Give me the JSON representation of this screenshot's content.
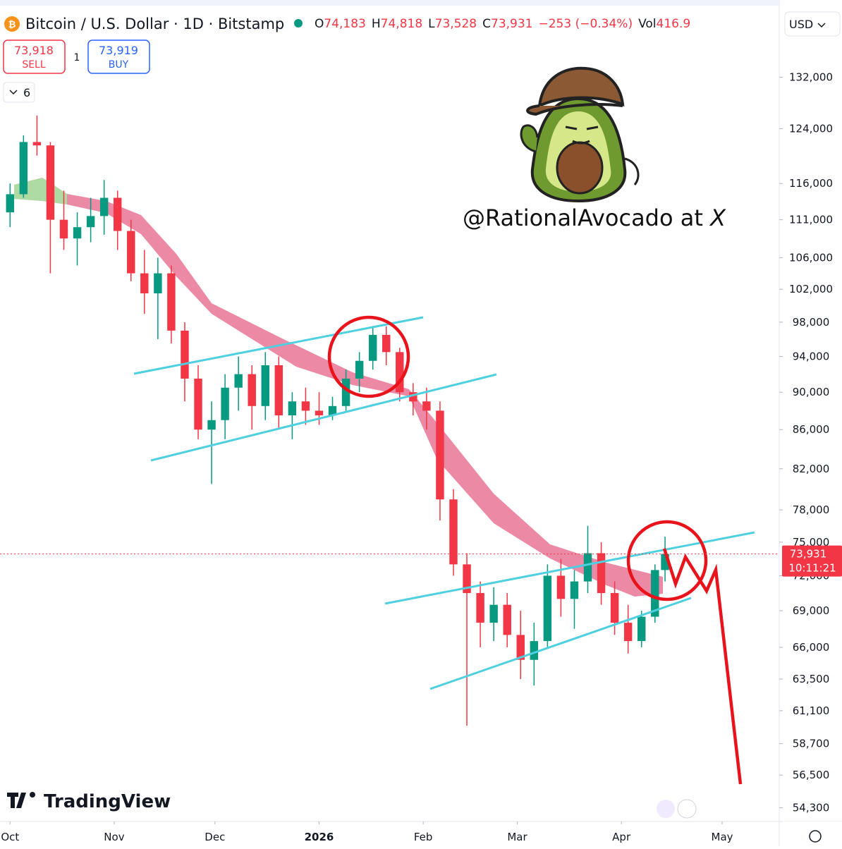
{
  "header": {
    "symbol": "Bitcoin / U.S. Dollar · 1D · Bitstamp",
    "open_label": "O",
    "open": "74,183",
    "high_label": "H",
    "high": "74,818",
    "low_label": "L",
    "low": "73,528",
    "close_label": "C",
    "close": "73,931",
    "change": "−253 (−0.34%)",
    "volume_label": "Vol",
    "volume": "416.9"
  },
  "trade": {
    "sell_price": "73,918",
    "sell": "SELL",
    "spread": "1",
    "buy_price": "73,919",
    "buy": "BUY"
  },
  "indicators_count": "6",
  "currency": "USD",
  "watermark": "@RationalAvocado at",
  "watermark_x": "X",
  "brand": "TradingView",
  "countdown": "10:11:21",
  "chart_data": {
    "type": "candlestick",
    "x": [
      0,
      4,
      8,
      12,
      16,
      20,
      24,
      28,
      32,
      36,
      40,
      44,
      48,
      52,
      56,
      60,
      64,
      68,
      72,
      76,
      80,
      84,
      88,
      92,
      96,
      100,
      104,
      108,
      112,
      116,
      120,
      124,
      128,
      132,
      136,
      140,
      144,
      148,
      152,
      156,
      160,
      164,
      168,
      172,
      176,
      180,
      184,
      188,
      192,
      195
    ],
    "open": [
      112000,
      114500,
      122000,
      121500,
      111000,
      108500,
      110000,
      111500,
      114000,
      109500,
      104000,
      101500,
      104000,
      97000,
      91500,
      86000,
      87000,
      90500,
      92000,
      88500,
      93000,
      87500,
      89000,
      88000,
      87500,
      88500,
      91500,
      93500,
      96500,
      94500,
      90000,
      89000,
      88000,
      79000,
      73000,
      70500,
      68000,
      69500,
      67000,
      65000,
      66500,
      72000,
      70000,
      71500,
      74000,
      70500,
      68000,
      66500,
      68500,
      72500
    ],
    "high": [
      116000,
      123000,
      126000,
      122000,
      115000,
      112000,
      114000,
      116500,
      115000,
      111000,
      107000,
      106000,
      105000,
      98000,
      93000,
      89000,
      92000,
      94000,
      93000,
      94500,
      94000,
      90000,
      90500,
      90000,
      89500,
      92500,
      94500,
      97500,
      97500,
      95000,
      91000,
      90500,
      89000,
      80000,
      74000,
      71500,
      71000,
      70500,
      69000,
      68000,
      73000,
      73500,
      72500,
      76500,
      75000,
      71500,
      69500,
      69000,
      73000,
      75500
    ],
    "low": [
      110000,
      114000,
      120000,
      104000,
      107000,
      105000,
      108000,
      109000,
      107000,
      103000,
      99000,
      96000,
      95500,
      89000,
      85000,
      80500,
      85000,
      88000,
      86000,
      87000,
      86000,
      85000,
      86500,
      86500,
      87000,
      88000,
      90000,
      92500,
      93000,
      89000,
      87500,
      86000,
      77000,
      72000,
      60000,
      66000,
      66500,
      66000,
      63500,
      63000,
      66000,
      68500,
      67500,
      70500,
      69500,
      67000,
      65500,
      66000,
      68000,
      71500
    ],
    "close": [
      114500,
      122000,
      121500,
      111000,
      108500,
      110000,
      111500,
      114000,
      109500,
      104000,
      101500,
      104000,
      97000,
      91500,
      86000,
      87000,
      90500,
      92000,
      88500,
      93000,
      87500,
      89000,
      88000,
      87500,
      88500,
      91500,
      93500,
      96500,
      94500,
      90000,
      89000,
      88000,
      79000,
      73000,
      70500,
      68000,
      69500,
      67000,
      65000,
      66500,
      72000,
      70000,
      71500,
      74000,
      70500,
      68000,
      66500,
      68500,
      72500,
      73931
    ],
    "up_color": "#089981",
    "down_color": "#f23645",
    "log_scale": true,
    "xlim": [
      -3,
      229
    ],
    "xticks": [
      {
        "value": 0,
        "label": "Oct"
      },
      {
        "value": 31,
        "label": "Nov"
      },
      {
        "value": 61,
        "label": "Dec"
      },
      {
        "value": 92,
        "label": "2026"
      },
      {
        "value": 123,
        "label": "Feb"
      },
      {
        "value": 151,
        "label": "Mar"
      },
      {
        "value": 182,
        "label": "Apr"
      },
      {
        "value": 212,
        "label": "May"
      }
    ],
    "ylim": [
      53400,
      145000
    ],
    "yticks": [
      {
        "value": 132000,
        "label": "132,000"
      },
      {
        "value": 124000,
        "label": "124,000"
      },
      {
        "value": 116000,
        "label": "116,000"
      },
      {
        "value": 111000,
        "label": "111,000"
      },
      {
        "value": 106000,
        "label": "106,000"
      },
      {
        "value": 102000,
        "label": "102,000"
      },
      {
        "value": 98000,
        "label": "98,000"
      },
      {
        "value": 94000,
        "label": "94,000"
      },
      {
        "value": 90000,
        "label": "90,000"
      },
      {
        "value": 86000,
        "label": "86,000"
      },
      {
        "value": 82000,
        "label": "82,000"
      },
      {
        "value": 78000,
        "label": "78,000"
      },
      {
        "value": 75000,
        "label": "75,000"
      },
      {
        "value": 72000,
        "label": "72,000"
      },
      {
        "value": 69000,
        "label": "69,000"
      },
      {
        "value": 66000,
        "label": "66,000"
      },
      {
        "value": 63500,
        "label": "63,500"
      },
      {
        "value": 61100,
        "label": "61,100"
      },
      {
        "value": 58700,
        "label": "58,700"
      },
      {
        "value": 56500,
        "label": "56,500"
      },
      {
        "value": 54300,
        "label": "54,300"
      }
    ],
    "last_price": 73931,
    "last_price_label": "73,931"
  }
}
